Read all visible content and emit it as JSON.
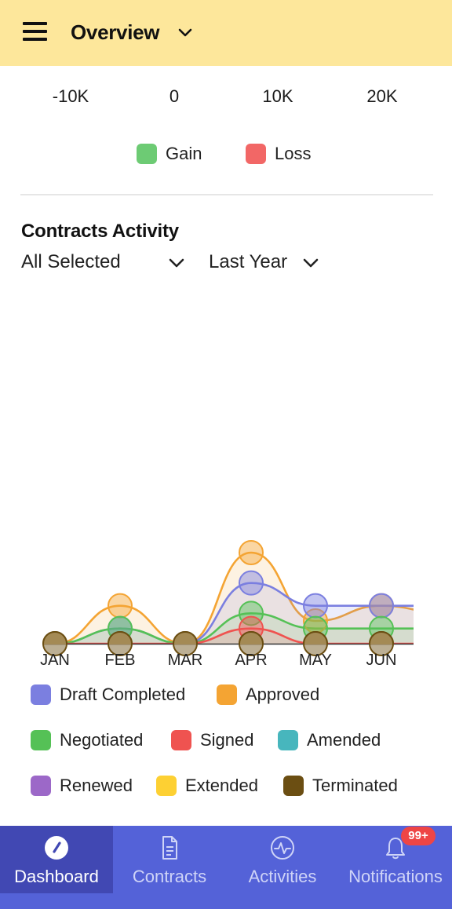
{
  "header": {
    "title": "Overview"
  },
  "gain_loss_chart": {
    "ticks": [
      "-10K",
      "0",
      "10K",
      "20K"
    ],
    "legend": [
      {
        "label": "Gain",
        "color": "#6dcb74"
      },
      {
        "label": "Loss",
        "color": "#f26766"
      }
    ]
  },
  "contracts_activity": {
    "title": "Contracts Activity",
    "filter_type": "All Selected",
    "filter_period": "Last Year"
  },
  "chart_data": {
    "type": "area",
    "categories": [
      "JAN",
      "FEB",
      "MAR",
      "APR",
      "MAY",
      "JUN"
    ],
    "ylim": [
      0,
      12
    ],
    "series": [
      {
        "name": "Draft Completed",
        "color": "#7b7fe0",
        "values": [
          0,
          2,
          0,
          8,
          5,
          5
        ]
      },
      {
        "name": "Approved",
        "color": "#f4a433",
        "values": [
          0,
          5,
          0,
          12,
          3,
          5
        ]
      },
      {
        "name": "Negotiated",
        "color": "#55c156",
        "values": [
          0,
          2,
          0,
          4,
          2,
          2
        ]
      },
      {
        "name": "Signed",
        "color": "#ef5350",
        "values": [
          0,
          0,
          0,
          2,
          0,
          0
        ]
      },
      {
        "name": "Amended",
        "color": "#47b6bd",
        "values": [
          0,
          0,
          0,
          0,
          0,
          0
        ]
      },
      {
        "name": "Renewed",
        "color": "#9c68c8",
        "values": [
          0,
          0,
          0,
          0,
          0,
          0
        ]
      },
      {
        "name": "Extended",
        "color": "#fdd033",
        "values": [
          0,
          0,
          0,
          0,
          0,
          0
        ]
      },
      {
        "name": "Terminated",
        "color": "#6b4e12",
        "values": [
          0,
          0,
          0,
          0,
          0,
          0
        ]
      }
    ]
  },
  "bottom_nav": {
    "tabs": [
      {
        "label": "Dashboard",
        "icon": "gauge-icon",
        "active": true
      },
      {
        "label": "Contracts",
        "icon": "document-icon",
        "active": false
      },
      {
        "label": "Activities",
        "icon": "pulse-icon",
        "active": false
      },
      {
        "label": "Notifications",
        "icon": "bell-icon",
        "active": false
      }
    ],
    "notification_badge": "99+"
  }
}
